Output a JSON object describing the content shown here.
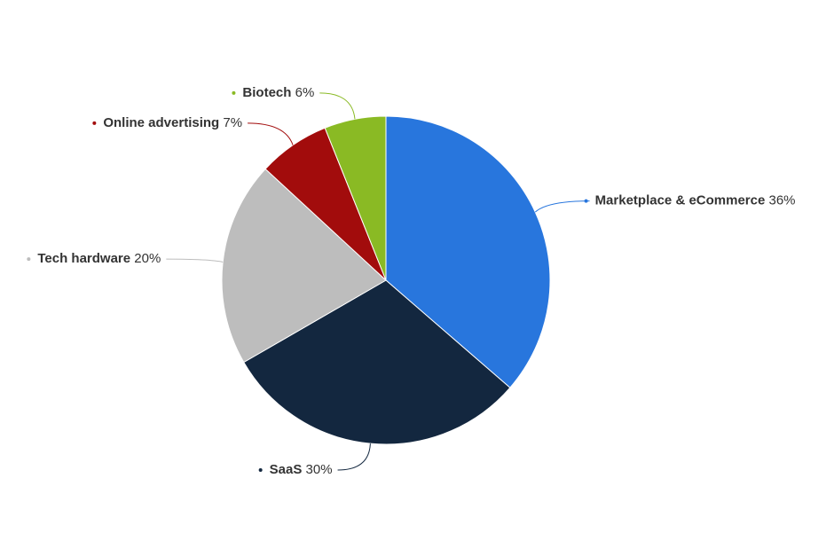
{
  "chart_data": {
    "type": "pie",
    "categories": [
      "Marketplace & eCommerce",
      "SaaS",
      "Tech hardware",
      "Online advertising",
      "Biotech"
    ],
    "values": [
      36,
      30,
      20,
      7,
      6
    ],
    "value_labels": [
      "36%",
      "30%",
      "20%",
      "7%",
      "6%"
    ],
    "colors": [
      "#2876dd",
      "#13273f",
      "#bdbdbd",
      "#a20c0c",
      "#8aba24"
    ]
  }
}
